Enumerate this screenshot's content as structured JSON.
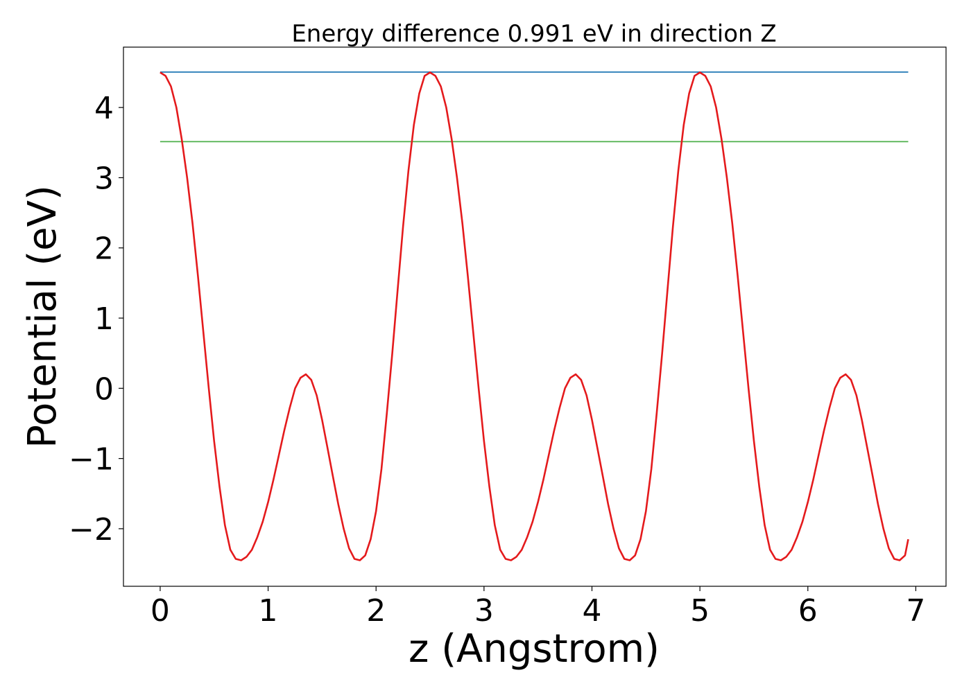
{
  "chart_data": {
    "type": "line",
    "title": "Energy difference 0.991 eV in direction Z",
    "xlabel": "z (Angstrom)",
    "ylabel": "Potential (eV)",
    "xlim": [
      -0.34,
      7.28
    ],
    "ylim": [
      -2.82,
      4.86
    ],
    "xticks": [
      0,
      1,
      2,
      3,
      4,
      5,
      6,
      7
    ],
    "yticks": [
      -2,
      -1,
      0,
      1,
      2,
      3,
      4
    ],
    "xtick_labels": [
      "0",
      "1",
      "2",
      "3",
      "4",
      "5",
      "6",
      "7"
    ],
    "ytick_labels": [
      "−2",
      "−1",
      "0",
      "1",
      "2",
      "3",
      "4"
    ],
    "grid": false,
    "series": [
      {
        "role": "potential",
        "color": "#e41a1c",
        "x": [
          0.0,
          0.05,
          0.1,
          0.15,
          0.2,
          0.25,
          0.3,
          0.35,
          0.4,
          0.45,
          0.5,
          0.55,
          0.6,
          0.65,
          0.7,
          0.75,
          0.8,
          0.85,
          0.9,
          0.95,
          1.0,
          1.05,
          1.1,
          1.15,
          1.2,
          1.25,
          1.3,
          1.35,
          1.4,
          1.45,
          1.5,
          1.55,
          1.6,
          1.65,
          1.7,
          1.75,
          1.8,
          1.85,
          1.9,
          1.95,
          2.0,
          2.05,
          2.1,
          2.15,
          2.2,
          2.25,
          2.3,
          2.35,
          2.4,
          2.45,
          2.5,
          2.55,
          2.6,
          2.65,
          2.7,
          2.75,
          2.8,
          2.85,
          2.9,
          2.95,
          3.0,
          3.05,
          3.1,
          3.15,
          3.2,
          3.25,
          3.3,
          3.35,
          3.4,
          3.45,
          3.5,
          3.55,
          3.6,
          3.65,
          3.7,
          3.75,
          3.8,
          3.85,
          3.9,
          3.95,
          4.0,
          4.05,
          4.1,
          4.15,
          4.2,
          4.25,
          4.3,
          4.35,
          4.4,
          4.45,
          4.5,
          4.55,
          4.6,
          4.65,
          4.7,
          4.75,
          4.8,
          4.85,
          4.9,
          4.95,
          5.0,
          5.05,
          5.1,
          5.15,
          5.2,
          5.25,
          5.3,
          5.35,
          5.4,
          5.45,
          5.5,
          5.55,
          5.6,
          5.65,
          5.7,
          5.75,
          5.8,
          5.85,
          5.9,
          5.95,
          6.0,
          6.05,
          6.1,
          6.15,
          6.2,
          6.25,
          6.3,
          6.35,
          6.4,
          6.45,
          6.5,
          6.55,
          6.6,
          6.65,
          6.7,
          6.75,
          6.8,
          6.85,
          6.9,
          6.93
        ],
        "y": [
          4.5,
          4.45,
          4.3,
          4.0,
          3.55,
          3.0,
          2.35,
          1.6,
          0.8,
          0.0,
          -0.75,
          -1.4,
          -1.95,
          -2.3,
          -2.43,
          -2.45,
          -2.4,
          -2.3,
          -2.12,
          -1.9,
          -1.62,
          -1.3,
          -0.95,
          -0.6,
          -0.28,
          0.0,
          0.15,
          0.2,
          0.12,
          -0.1,
          -0.45,
          -0.85,
          -1.25,
          -1.65,
          -2.0,
          -2.28,
          -2.43,
          -2.45,
          -2.38,
          -2.15,
          -1.75,
          -1.15,
          -0.35,
          0.5,
          1.4,
          2.3,
          3.1,
          3.75,
          4.2,
          4.45,
          4.5,
          4.45,
          4.3,
          4.0,
          3.55,
          3.0,
          2.35,
          1.6,
          0.8,
          0.0,
          -0.75,
          -1.4,
          -1.95,
          -2.3,
          -2.43,
          -2.45,
          -2.4,
          -2.3,
          -2.12,
          -1.9,
          -1.62,
          -1.3,
          -0.95,
          -0.6,
          -0.28,
          0.0,
          0.15,
          0.2,
          0.12,
          -0.1,
          -0.45,
          -0.85,
          -1.25,
          -1.65,
          -2.0,
          -2.28,
          -2.43,
          -2.45,
          -2.38,
          -2.15,
          -1.75,
          -1.15,
          -0.35,
          0.5,
          1.4,
          2.3,
          3.1,
          3.75,
          4.2,
          4.45,
          4.5,
          4.45,
          4.3,
          4.0,
          3.55,
          3.0,
          2.35,
          1.6,
          0.8,
          0.0,
          -0.75,
          -1.4,
          -1.95,
          -2.3,
          -2.43,
          -2.45,
          -2.4,
          -2.3,
          -2.12,
          -1.9,
          -1.62,
          -1.3,
          -0.95,
          -0.6,
          -0.28,
          0.0,
          0.15,
          0.2,
          0.12,
          -0.1,
          -0.45,
          -0.85,
          -1.25,
          -1.65,
          -2.0,
          -2.28,
          -2.43,
          -2.45,
          -2.38,
          -2.15
        ]
      },
      {
        "role": "maximum-level",
        "color": "#1f77b4",
        "x": [
          0.0,
          6.93
        ],
        "y": [
          4.505,
          4.505
        ]
      },
      {
        "role": "reference-level",
        "color": "#4daf4a",
        "x": [
          0.0,
          6.93
        ],
        "y": [
          3.514,
          3.514
        ]
      }
    ]
  }
}
